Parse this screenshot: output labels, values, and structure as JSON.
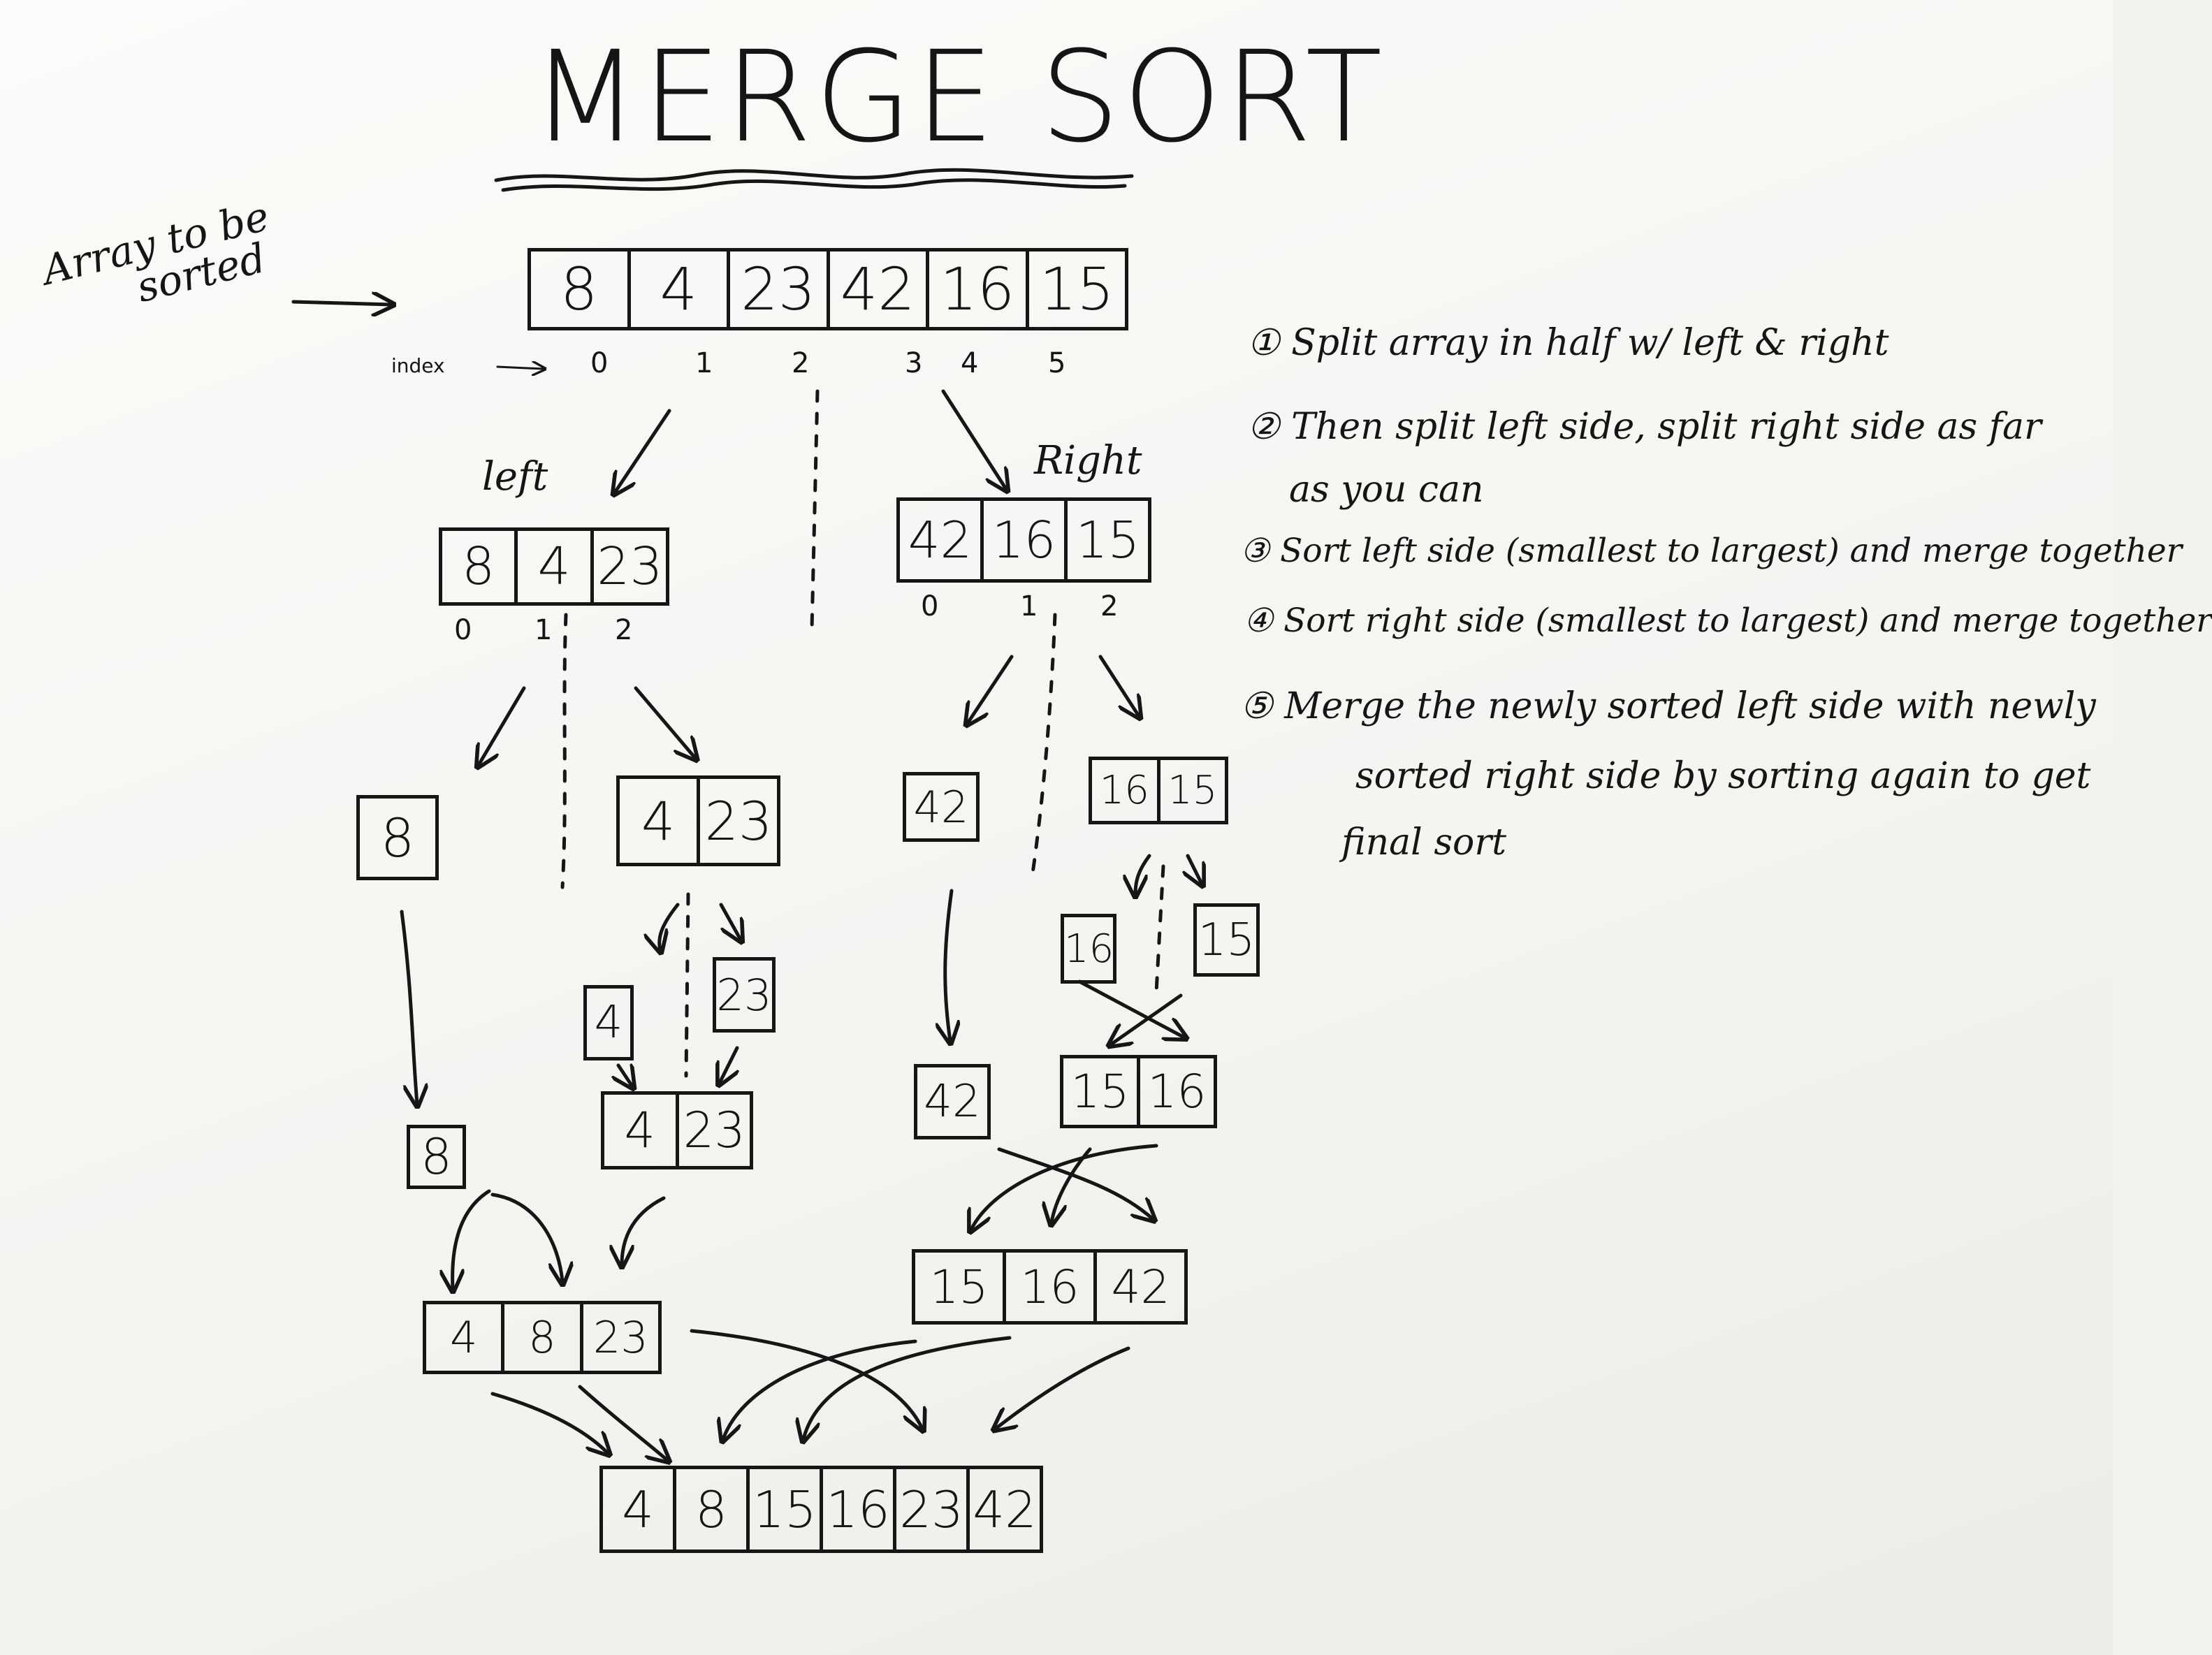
{
  "title": "MERGE SORT",
  "input_label": [
    "Array to be",
    "sorted"
  ],
  "index_label": "index",
  "input_array": [
    "8",
    "4",
    "23",
    "42",
    "16",
    "15"
  ],
  "input_indices": [
    "0",
    "1",
    "2",
    "3",
    "4",
    "5"
  ],
  "left_label": "left",
  "right_label": "Right",
  "left_array": [
    "8",
    "4",
    "23"
  ],
  "left_indices": [
    "0",
    "1",
    "2"
  ],
  "right_array": [
    "42",
    "16",
    "15"
  ],
  "right_indices": [
    "0",
    "1",
    "2"
  ],
  "level2": {
    "a": [
      "8"
    ],
    "b": [
      "4",
      "23"
    ],
    "c": [
      "42"
    ],
    "d": [
      "16",
      "15"
    ]
  },
  "level3": {
    "a": [
      "4"
    ],
    "b": [
      "23"
    ],
    "c": [
      "16"
    ],
    "d": [
      "15"
    ]
  },
  "level4": {
    "a": [
      "8"
    ],
    "b": [
      "4",
      "23"
    ],
    "c": [
      "42"
    ],
    "d": [
      "15",
      "16"
    ]
  },
  "merged_left": [
    "4",
    "8",
    "23"
  ],
  "merged_right": [
    "15",
    "16",
    "42"
  ],
  "final_array": [
    "4",
    "8",
    "15",
    "16",
    "23",
    "42"
  ],
  "steps": [
    "① Split array in half w/ left & right",
    "② Then split left side, split right side as far",
    "as you can",
    "③ Sort left side (smallest to largest) and merge together",
    "④ Sort right side (smallest to largest) and merge together",
    "⑤ Merge the newly sorted left side with newly",
    "sorted right side by sorting again to get",
    "final sort"
  ],
  "colors": {
    "ink": "#161616",
    "board": "#f6f6f3"
  }
}
